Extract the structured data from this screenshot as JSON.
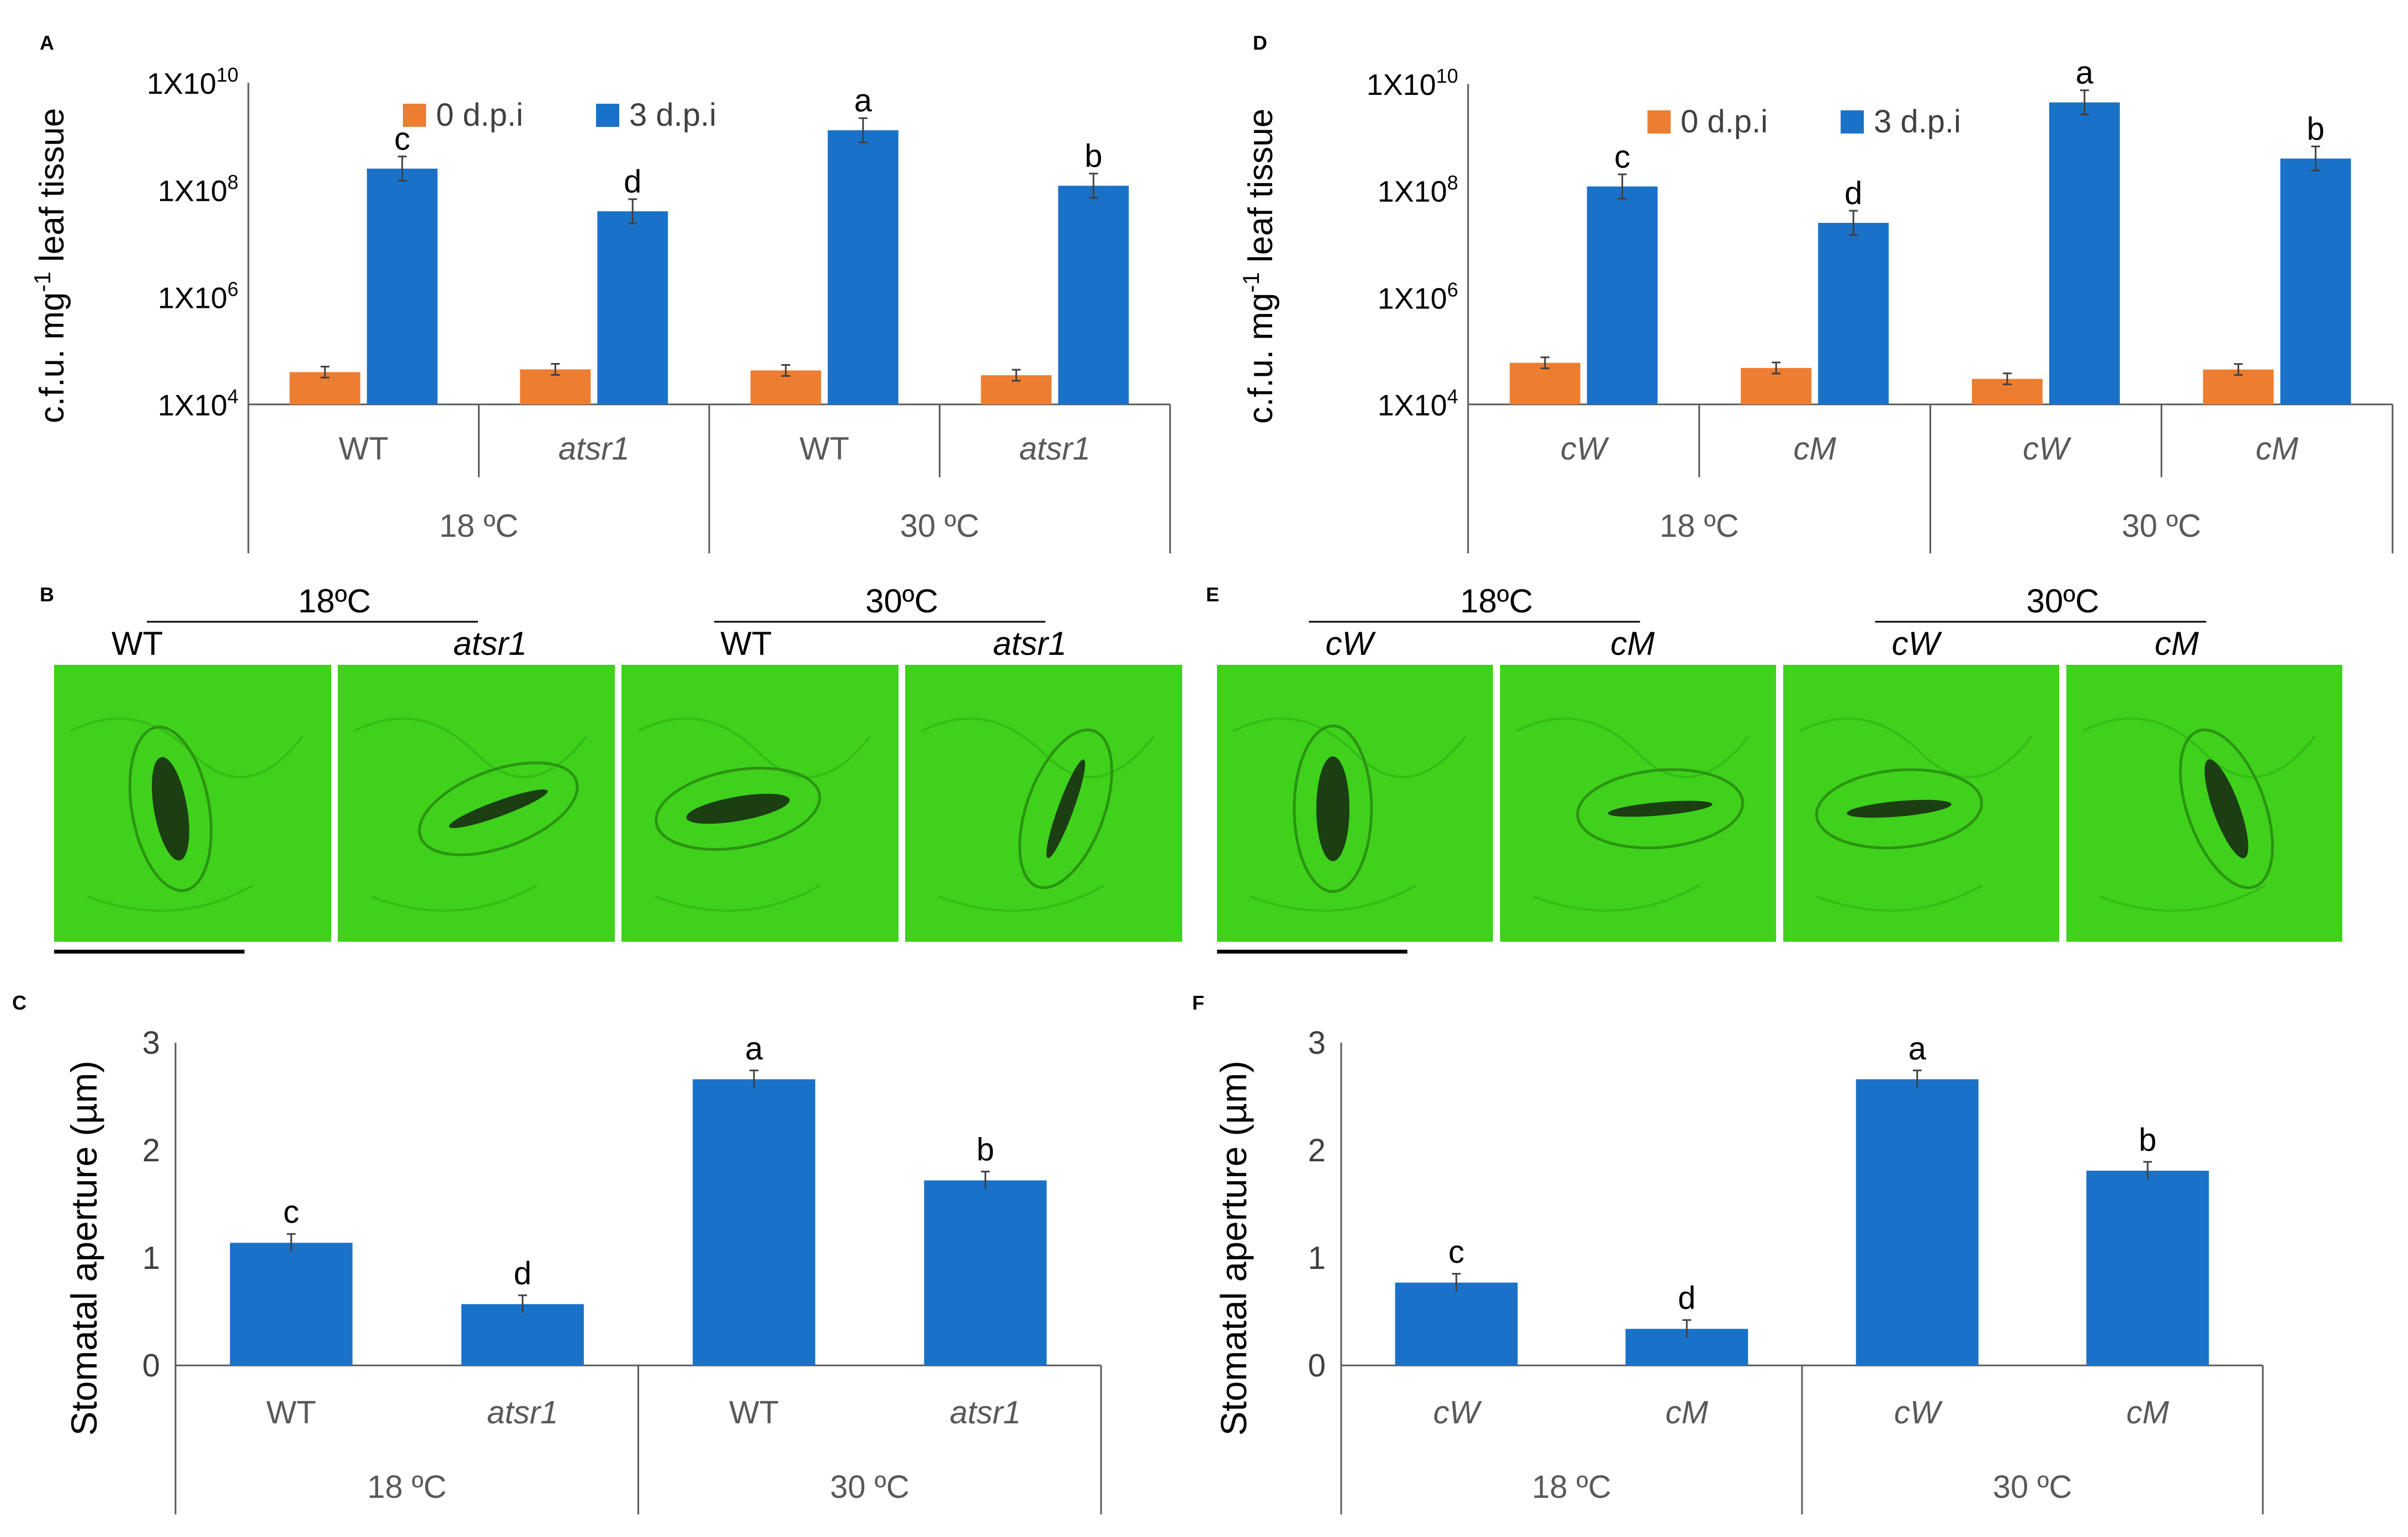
{
  "panel_labels": {
    "A": "A",
    "B": "B",
    "C": "C",
    "D": "D",
    "E": "E",
    "F": "F"
  },
  "chart_data": [
    {
      "panel": "A",
      "type": "bar",
      "yscale": "log",
      "ylabel": "c.f.u. mg",
      "ylabel_sup": "-1",
      "ylabel_tail": " leaf tissue",
      "yticks": [
        {
          "base": "1X10",
          "exp": "4"
        },
        {
          "base": "1X10",
          "exp": "6"
        },
        {
          "base": "1X10",
          "exp": "8"
        },
        {
          "base": "1X10",
          "exp": "10"
        }
      ],
      "ylim": [
        10000,
        10000000000
      ],
      "legend": {
        "placement": "top",
        "entries": [
          "0 d.p.i",
          "3 d.p.i"
        ]
      },
      "colors": {
        "s0": "#ed7d31",
        "s1": "#1a72c8"
      },
      "categories": [
        "WT",
        "atsr1",
        "WT",
        "atsr1"
      ],
      "groups": [
        "18 ºC",
        "30 ºC"
      ],
      "series": [
        {
          "name": "0 d.p.i",
          "values": [
            40000,
            45000,
            43000,
            35000
          ]
        },
        {
          "name": "3 d.p.i",
          "values": [
            250000000,
            40000000,
            1300000000,
            120000000
          ],
          "letters": [
            "c",
            "d",
            "a",
            "b"
          ]
        }
      ]
    },
    {
      "panel": "D",
      "type": "bar",
      "yscale": "log",
      "ylabel": "c.f.u. mg",
      "ylabel_sup": "-1",
      "ylabel_tail": " leaf tissue",
      "yticks": [
        {
          "base": "1X10",
          "exp": "4"
        },
        {
          "base": "1X10",
          "exp": "6"
        },
        {
          "base": "1X10",
          "exp": "8"
        },
        {
          "base": "1X10",
          "exp": "10"
        }
      ],
      "ylim": [
        10000,
        10000000000
      ],
      "legend": {
        "placement": "top",
        "entries": [
          "0 d.p.i",
          "3 d.p.i"
        ]
      },
      "colors": {
        "s0": "#ed7d31",
        "s1": "#1a72c8"
      },
      "categories": [
        "cW",
        "cM",
        "cW",
        "cM"
      ],
      "groups": [
        "18 ºC",
        "30 ºC"
      ],
      "series": [
        {
          "name": "0 d.p.i",
          "values": [
            60000,
            48000,
            30000,
            45000
          ]
        },
        {
          "name": "3 d.p.i",
          "values": [
            120000000,
            25000000,
            4500000000,
            400000000
          ],
          "letters": [
            "c",
            "d",
            "a",
            "b"
          ]
        }
      ]
    },
    {
      "panel": "C",
      "type": "bar",
      "ylabel": "Stomatal aperture (µm)",
      "ylim": [
        0,
        3
      ],
      "yticks": [
        "0",
        "1",
        "2",
        "3"
      ],
      "colors": {
        "s1": "#1a72c8"
      },
      "categories": [
        "WT",
        "atsr1",
        "WT",
        "atsr1"
      ],
      "groups": [
        "18 ºC",
        "30 ºC"
      ],
      "series": [
        {
          "values": [
            1.14,
            0.57,
            2.66,
            1.72
          ],
          "letters": [
            "c",
            "d",
            "a",
            "b"
          ]
        }
      ]
    },
    {
      "panel": "F",
      "type": "bar",
      "ylabel": "Stomatal aperture (µm)",
      "ylim": [
        0,
        3
      ],
      "yticks": [
        "0",
        "1",
        "2",
        "3"
      ],
      "colors": {
        "s1": "#1a72c8"
      },
      "categories": [
        "cW",
        "cM",
        "cW",
        "cM"
      ],
      "groups": [
        "18 ºC",
        "30 ºC"
      ],
      "series": [
        {
          "values": [
            0.77,
            0.34,
            2.66,
            1.81
          ],
          "letters": [
            "c",
            "d",
            "a",
            "b"
          ]
        }
      ]
    }
  ],
  "micrographs": {
    "B": {
      "groups": [
        "18ºC",
        "30ºC"
      ],
      "labels": [
        "WT",
        "atsr1",
        "WT",
        "atsr1"
      ]
    },
    "E": {
      "groups": [
        "18ºC",
        "30ºC"
      ],
      "labels": [
        "cW",
        "cM",
        "cW",
        "cM"
      ]
    },
    "background_color": "#3fd11c",
    "stoma_color": "#1b3e12"
  }
}
